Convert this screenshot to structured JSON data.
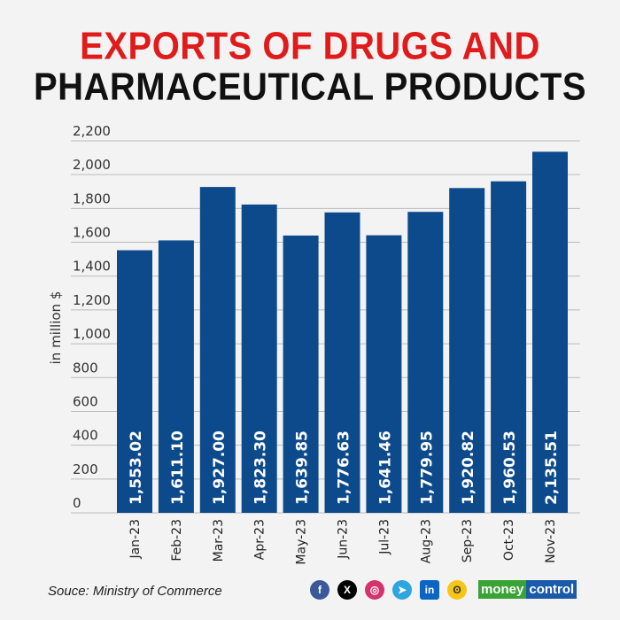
{
  "title_line1": "EXPORTS OF DRUGS AND",
  "title_line2": "PHARMACEUTICAL PRODUCTS",
  "source": "Souce: Ministry of Commerce",
  "brand": {
    "part1": "money",
    "part2": "control",
    "green": "#3aa335",
    "blue": "#1a5aa8"
  },
  "social_icons": [
    "facebook-icon",
    "x-icon",
    "instagram-icon",
    "telegram-icon",
    "linkedin-icon",
    "koo-icon"
  ],
  "chart_data": {
    "type": "bar",
    "title": "EXPORTS OF DRUGS AND PHARMACEUTICAL PRODUCTS",
    "ylabel": "in million $",
    "xlabel": "",
    "ylim": [
      0,
      2200
    ],
    "yticks": [
      0,
      200,
      400,
      600,
      800,
      1000,
      1200,
      1400,
      1600,
      1800,
      2000,
      2200
    ],
    "ytick_labels": [
      "0",
      "200",
      "400",
      "600",
      "800",
      "1,000",
      "1,200",
      "1,400",
      "1,600",
      "1,800",
      "2,000",
      "2,200"
    ],
    "grid": true,
    "bar_color": "#0d4a8c",
    "categories": [
      "Jan-23",
      "Feb-23",
      "Mar-23",
      "Apr-23",
      "May-23",
      "Jun-23",
      "Jul-23",
      "Aug-23",
      "Sep-23",
      "Oct-23",
      "Nov-23"
    ],
    "values": [
      1553.02,
      1611.1,
      1927.0,
      1823.3,
      1639.85,
      1776.63,
      1641.46,
      1779.95,
      1920.82,
      1960.53,
      2135.51
    ],
    "value_labels": [
      "1,553.02",
      "1,611.10",
      "1,927.00",
      "1,823.30",
      "1,639.85",
      "1,776.63",
      "1,641.46",
      "1,779.95",
      "1,920.82",
      "1,960.53",
      "2,135.51"
    ]
  }
}
